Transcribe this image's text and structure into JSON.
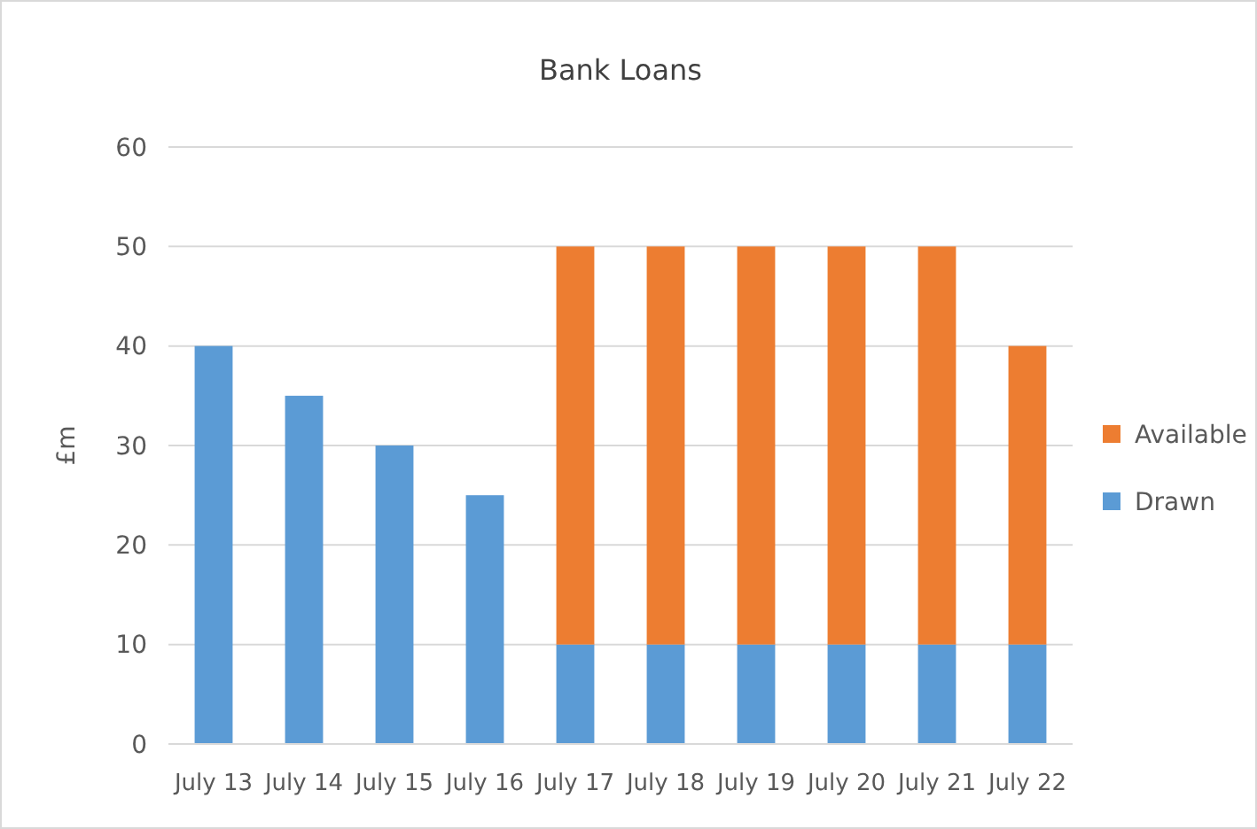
{
  "chart_data": {
    "type": "bar",
    "title": "Bank Loans",
    "ylabel": "£m",
    "categories": [
      "July 13",
      "July 14",
      "July 15",
      "July 16",
      "July 17",
      "July 18",
      "July 19",
      "July 20",
      "July 21",
      "July 22"
    ],
    "stacked": true,
    "series": [
      {
        "name": "Drawn",
        "color": "#5b9bd5",
        "values": [
          40,
          35,
          30,
          25,
          10,
          10,
          10,
          10,
          10,
          10
        ]
      },
      {
        "name": "Available",
        "color": "#ed7d31",
        "values": [
          null,
          null,
          null,
          null,
          40,
          40,
          40,
          40,
          40,
          30
        ]
      }
    ],
    "ylim": [
      0,
      60
    ],
    "yticks": [
      0,
      10,
      20,
      30,
      40,
      50,
      60
    ],
    "grid": "y",
    "legend": "right"
  }
}
